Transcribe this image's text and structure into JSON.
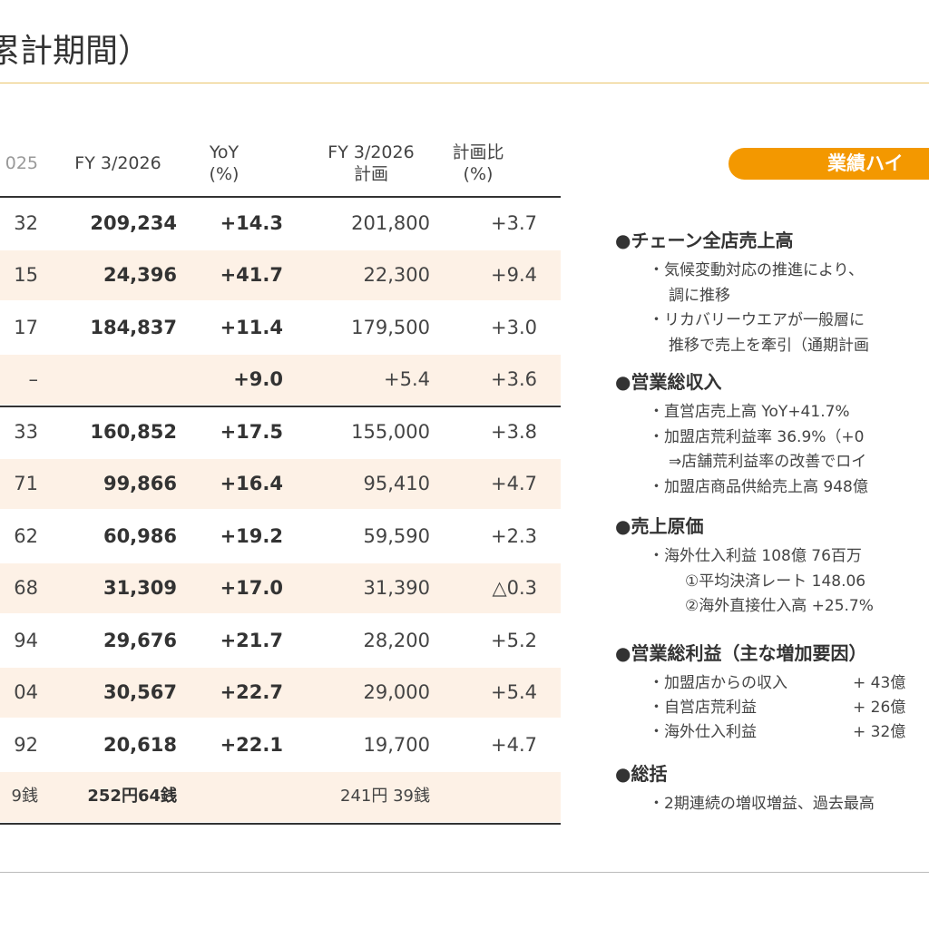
{
  "header": {
    "title": "累計期間）"
  },
  "table": {
    "columns": [
      [
        "025"
      ],
      [
        "FY 3/2026"
      ],
      [
        "YoY",
        "(%)"
      ],
      [
        "FY 3/2026",
        "計画"
      ],
      [
        "計画比",
        "(%)"
      ]
    ],
    "rows": [
      [
        "32",
        "209,234",
        "+14.3",
        "201,800",
        "+3.7"
      ],
      [
        "15",
        "24,396",
        "+41.7",
        "22,300",
        "+9.4"
      ],
      [
        "17",
        "184,837",
        "+11.4",
        "179,500",
        "+3.0"
      ],
      [
        "–",
        "",
        "+9.0",
        "+5.4",
        "+3.6"
      ],
      [
        "33",
        "160,852",
        "+17.5",
        "155,000",
        "+3.8"
      ],
      [
        "71",
        "99,866",
        "+16.4",
        "95,410",
        "+4.7"
      ],
      [
        "62",
        "60,986",
        "+19.2",
        "59,590",
        "+2.3"
      ],
      [
        "68",
        "31,309",
        "+17.0",
        "31,390",
        "△0.3"
      ],
      [
        "94",
        "29,676",
        "+21.7",
        "28,200",
        "+5.2"
      ],
      [
        "04",
        "30,567",
        "+22.7",
        "29,000",
        "+5.4"
      ],
      [
        "92",
        "20,618",
        "+22.1",
        "19,700",
        "+4.7"
      ],
      [
        "9銭",
        "252円64銭",
        "",
        "241円 39銭",
        ""
      ]
    ]
  },
  "highlights": {
    "badge": "業績ハイ",
    "sections": [
      {
        "heading": "●チェーン全店売上高",
        "lines": [
          "・気候変動対応の推進により、",
          "調に推移",
          "・リカバリーウエアが一般層に",
          "推移で売上を牽引（通期計画"
        ]
      },
      {
        "heading": "●営業総収入",
        "lines": [
          "・直営店売上高 YoY+41.7%",
          "・加盟店荒利益率 36.9%（+0",
          "⇒店舗荒利益率の改善でロイ",
          "・加盟店商品供給売上高 948億"
        ]
      },
      {
        "heading": "●売上原価",
        "lines": [
          "・海外仕入利益 108億 76百万",
          "①平均決済レート 148.06",
          "②海外直接仕入高 +25.7%"
        ]
      },
      {
        "heading": "●営業総利益（主な増加要因）",
        "rows": [
          [
            "・加盟店からの収入",
            "+ 43億"
          ],
          [
            "・自営店荒利益",
            "+ 26億"
          ],
          [
            "・海外仕入利益",
            "+ 32億"
          ]
        ]
      },
      {
        "heading": "●総括",
        "lines": [
          "・2期連続の増収増益、過去最高"
        ]
      }
    ]
  }
}
